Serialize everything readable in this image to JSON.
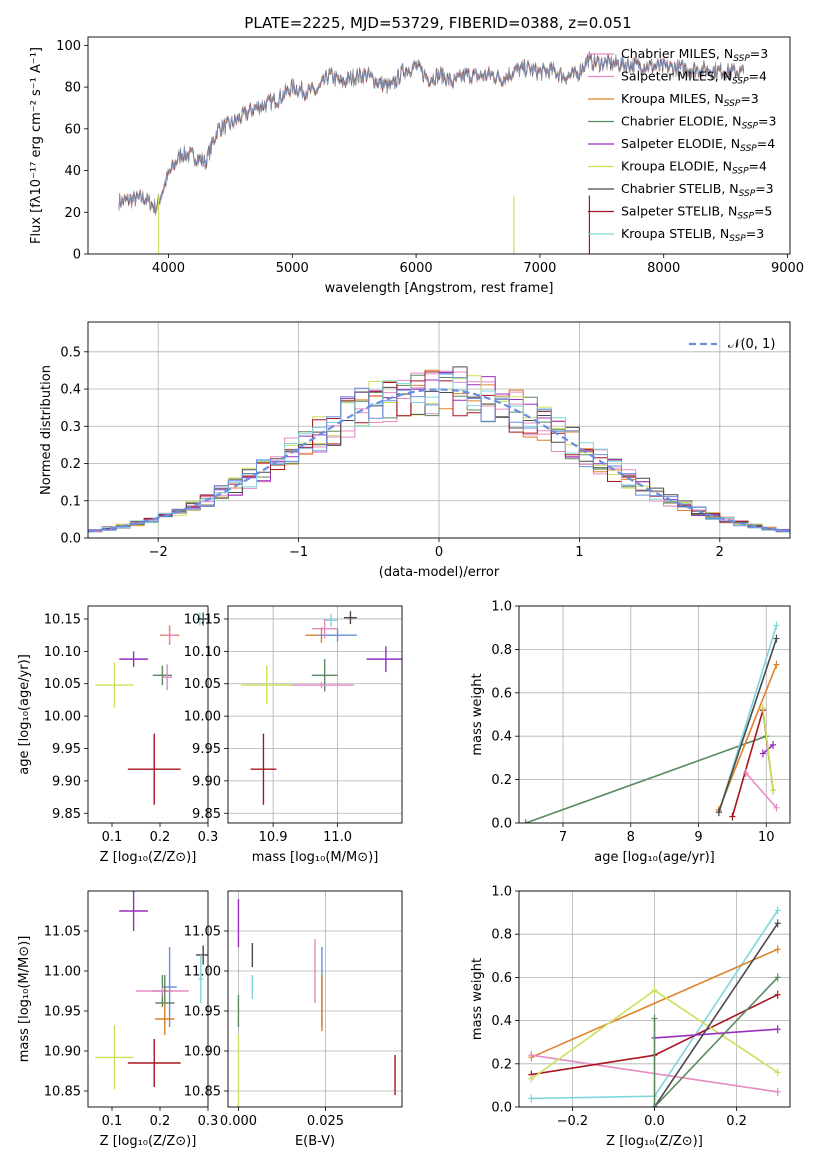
{
  "figure": {
    "title": "PLATE=2225, MJD=53729, FIBERID=0388, z=0.051"
  },
  "colors": {
    "pink": "#e58bc4",
    "orange": "#e0822a",
    "gray": "#6e6e6e",
    "purple": "#9a2fbf",
    "yellow": "#cde05a",
    "dark": "#4a4a4a",
    "red": "#a81621",
    "cyan": "#7fd6dc",
    "green": "#5a8a60",
    "blue": "#6a8fe0",
    "olive": "#9a9a3a",
    "grid": "#b0b0b0"
  },
  "legend_spectrum": [
    {
      "text": "Chabrier MILES, N",
      "sub": "SSP",
      "suffix": "=3",
      "color": "#e58bc4"
    },
    {
      "text": "Salpeter MILES, N",
      "sub": "SSP",
      "suffix": "=4",
      "color": "#e58bc4"
    },
    {
      "text": "Kroupa MILES, N",
      "sub": "SSP",
      "suffix": "=3",
      "color": "#e0822a"
    },
    {
      "text": "Chabrier ELODIE, N",
      "sub": "SSP",
      "suffix": "=3",
      "color": "#5a8a60"
    },
    {
      "text": "Salpeter ELODIE, N",
      "sub": "SSP",
      "suffix": "=4",
      "color": "#9a2fbf"
    },
    {
      "text": "Kroupa ELODIE, N",
      "sub": "SSP",
      "suffix": "=4",
      "color": "#cde05a"
    },
    {
      "text": "Chabrier STELIB, N",
      "sub": "SSP",
      "suffix": "=3",
      "color": "#4a4a4a"
    },
    {
      "text": "Salpeter STELIB, N",
      "sub": "SSP",
      "suffix": "=5",
      "color": "#a81621"
    },
    {
      "text": "Kroupa STELIB, N",
      "sub": "SSP",
      "suffix": "=3",
      "color": "#7fd6dc"
    }
  ],
  "chart_data": [
    {
      "id": "spectrum",
      "type": "line",
      "xlabel": "wavelength [Angstrom, rest frame]",
      "ylabel": "Flux [fλ10⁻¹⁷ erg cm⁻² s⁻¹ A⁻¹]",
      "xlim": [
        3350,
        9020
      ],
      "ylim": [
        0,
        104
      ],
      "xticks": [
        4000,
        5000,
        6000,
        7000,
        8000,
        9000
      ],
      "yticks": [
        0,
        20,
        40,
        60,
        80,
        100
      ],
      "x": [
        3600,
        3700,
        3800,
        3900,
        4000,
        4100,
        4200,
        4300,
        4400,
        4500,
        4600,
        4700,
        4800,
        4900,
        5000,
        5100,
        5200,
        5300,
        5400,
        5500,
        5600,
        5700,
        5800,
        5900,
        6000,
        6100,
        6200,
        6300,
        6400,
        6500,
        6600,
        6700,
        6800,
        6900,
        7000,
        7100,
        7200,
        7300,
        7400
      ],
      "y": [
        25,
        26,
        27,
        22,
        38,
        48,
        47,
        44,
        60,
        62,
        66,
        70,
        72,
        75,
        80,
        78,
        78,
        86,
        82,
        85,
        86,
        82,
        80,
        88,
        90,
        84,
        86,
        82,
        86,
        85,
        86,
        84,
        88,
        89,
        87,
        88,
        85,
        86,
        94
      ]
    },
    {
      "id": "residual-histogram",
      "type": "histogram",
      "xlabel": "(data-model)/error",
      "ylabel": "Normed distribution",
      "xlim": [
        -2.5,
        2.5
      ],
      "ylim": [
        0,
        0.58
      ],
      "xticks": [
        -2,
        -1,
        0,
        1,
        2
      ],
      "yticks": [
        0.0,
        0.1,
        0.2,
        0.3,
        0.4,
        0.5
      ],
      "legend": "N(0,1)",
      "reference": {
        "mean": 0,
        "sigma": 1
      },
      "bin_width": 0.1
    },
    {
      "id": "age-vs-metallicity",
      "type": "scatter",
      "xlabel": "Z [log₁₀(Z/Z⊙)]",
      "ylabel": "age [log₁₀(age/yr)]",
      "xlim": [
        0.05,
        0.3
      ],
      "ylim": [
        9.835,
        10.17
      ],
      "xticks": [
        0.1,
        0.2,
        0.3
      ],
      "yticks": [
        9.85,
        9.9,
        9.95,
        10.0,
        10.05,
        10.1,
        10.15
      ],
      "points": [
        {
          "x": 0.22,
          "y": 10.125,
          "xerr": 0.02,
          "yerr": 0.015,
          "color": "#e0822a"
        },
        {
          "x": 0.22,
          "y": 10.125,
          "xerr": 0.015,
          "yerr": 0.012,
          "color": "#e58bc4"
        },
        {
          "x": 0.283,
          "y": 10.15,
          "xerr": 0.008,
          "yerr": 0.01,
          "color": "#7fd6dc"
        },
        {
          "x": 0.29,
          "y": 10.15,
          "xerr": 0.01,
          "yerr": 0.01,
          "color": "#4a4a4a"
        },
        {
          "x": 0.145,
          "y": 10.088,
          "xerr": 0.03,
          "yerr": 0.012,
          "color": "#9a2fbf"
        },
        {
          "x": 0.205,
          "y": 10.063,
          "xerr": 0.02,
          "yerr": 0.015,
          "color": "#5a8a60"
        },
        {
          "x": 0.215,
          "y": 10.06,
          "xerr": 0.01,
          "yerr": 0.02,
          "color": "#e58bc4"
        },
        {
          "x": 0.105,
          "y": 10.048,
          "xerr": 0.04,
          "yerr": 0.035,
          "color": "#cde05a"
        },
        {
          "x": 0.188,
          "y": 9.918,
          "xerr": 0.055,
          "yerr": 0.055,
          "color": "#a81621"
        }
      ]
    },
    {
      "id": "age-vs-mass",
      "type": "scatter",
      "xlabel": "mass [log₁₀(M/M⊙)]",
      "xlim": [
        10.83,
        11.1
      ],
      "ylim": [
        9.835,
        10.17
      ],
      "xticks": [
        10.9,
        11.0
      ],
      "yticks": [
        9.85,
        9.9,
        9.95,
        10.0,
        10.05,
        10.1,
        10.15
      ],
      "points": [
        {
          "x": 11.02,
          "y": 10.152,
          "xerr": 0.01,
          "yerr": 0.01,
          "color": "#4a4a4a"
        },
        {
          "x": 10.99,
          "y": 10.148,
          "xerr": 0.01,
          "yerr": 0.01,
          "color": "#7fd6dc"
        },
        {
          "x": 10.975,
          "y": 10.125,
          "xerr": 0.025,
          "yerr": 0.012,
          "color": "#e0822a"
        },
        {
          "x": 11.0,
          "y": 10.125,
          "xerr": 0.03,
          "yerr": 0.01,
          "color": "#6a8fe0"
        },
        {
          "x": 10.98,
          "y": 10.135,
          "xerr": 0.02,
          "yerr": 0.015,
          "color": "#e58bc4"
        },
        {
          "x": 11.075,
          "y": 10.088,
          "xerr": 0.03,
          "yerr": 0.02,
          "color": "#9a2fbf"
        },
        {
          "x": 10.98,
          "y": 10.063,
          "xerr": 0.02,
          "yerr": 0.025,
          "color": "#5a8a60"
        },
        {
          "x": 10.975,
          "y": 10.048,
          "xerr": 0.05,
          "yerr": 0.005,
          "color": "#e58bc4"
        },
        {
          "x": 10.89,
          "y": 10.048,
          "xerr": 0.04,
          "yerr": 0.03,
          "color": "#cde05a"
        },
        {
          "x": 10.885,
          "y": 9.918,
          "xerr": 0.02,
          "yerr": 0.055,
          "color": "#a81621"
        }
      ]
    },
    {
      "id": "massweight-vs-age",
      "type": "line",
      "xlabel": "age  [log₁₀(age/yr)]",
      "ylabel": "mass weight",
      "xlim": [
        6.35,
        10.35
      ],
      "ylim": [
        0,
        1.0
      ],
      "xticks": [
        7,
        8,
        9,
        10
      ],
      "yticks": [
        0.0,
        0.2,
        0.4,
        0.6,
        0.8,
        1.0
      ],
      "series": [
        {
          "color": "#5a8a60",
          "x": [
            6.45,
            10.0
          ],
          "y": [
            0.0,
            0.4
          ]
        },
        {
          "color": "#7fd6dc",
          "x": [
            9.3,
            10.15
          ],
          "y": [
            0.05,
            0.91
          ]
        },
        {
          "color": "#e0822a",
          "x": [
            9.3,
            10.15
          ],
          "y": [
            0.06,
            0.73
          ]
        },
        {
          "color": "#4a4a4a",
          "x": [
            9.3,
            10.15
          ],
          "y": [
            0.05,
            0.85
          ]
        },
        {
          "color": "#a81621",
          "x": [
            9.5,
            9.95,
            10.1
          ],
          "y": [
            0.03,
            0.52,
            0.15
          ]
        },
        {
          "color": "#9a2fbf",
          "x": [
            9.95,
            10.1
          ],
          "y": [
            0.32,
            0.36
          ]
        },
        {
          "color": "#cde05a",
          "x": [
            9.95,
            10.1
          ],
          "y": [
            0.53,
            0.15
          ]
        },
        {
          "color": "#e58bc4",
          "x": [
            9.7,
            10.15
          ],
          "y": [
            0.23,
            0.07
          ]
        }
      ]
    },
    {
      "id": "mass-vs-metallicity",
      "type": "scatter",
      "xlabel": "Z [log₁₀(Z/Z⊙)]",
      "ylabel": "mass [log₁₀(M/M⊙)]",
      "xlim": [
        0.05,
        0.3
      ],
      "ylim": [
        10.83,
        11.1
      ],
      "xticks": [
        0.1,
        0.2,
        0.3
      ],
      "yticks": [
        10.85,
        10.9,
        10.95,
        11.0,
        11.05
      ],
      "points": [
        {
          "x": 0.145,
          "y": 11.075,
          "xerr": 0.03,
          "yerr": 0.025,
          "color": "#9a2fbf"
        },
        {
          "x": 0.29,
          "y": 11.02,
          "xerr": 0.015,
          "yerr": 0.012,
          "color": "#4a4a4a"
        },
        {
          "x": 0.285,
          "y": 10.99,
          "xerr": 0.005,
          "yerr": 0.03,
          "color": "#7fd6dc"
        },
        {
          "x": 0.22,
          "y": 10.98,
          "xerr": 0.015,
          "yerr": 0.05,
          "color": "#6a8fe0"
        },
        {
          "x": 0.205,
          "y": 10.975,
          "xerr": 0.02,
          "yerr": 0.02,
          "color": "#5a8a60"
        },
        {
          "x": 0.205,
          "y": 10.975,
          "xerr": 0.055,
          "yerr": 0.005,
          "color": "#e58bc4"
        },
        {
          "x": 0.21,
          "y": 10.96,
          "xerr": 0.02,
          "yerr": 0.035,
          "color": "#5a8a60"
        },
        {
          "x": 0.21,
          "y": 10.94,
          "xerr": 0.02,
          "yerr": 0.02,
          "color": "#e0822a"
        },
        {
          "x": 0.105,
          "y": 10.892,
          "xerr": 0.04,
          "yerr": 0.04,
          "color": "#cde05a"
        },
        {
          "x": 0.188,
          "y": 10.885,
          "xerr": 0.055,
          "yerr": 0.03,
          "color": "#a81621"
        }
      ]
    },
    {
      "id": "mass-vs-ebv",
      "type": "scatter",
      "xlabel": "E(B-V)",
      "xlim": [
        -0.003,
        0.047
      ],
      "ylim": [
        10.83,
        11.1
      ],
      "xticks": [
        0.0,
        0.025
      ],
      "yticks": [
        10.85,
        10.9,
        10.95,
        11.0,
        11.05
      ],
      "points": [
        {
          "x": 0.0,
          "y": 11.06,
          "yerr": 0.03,
          "color": "#9a2fbf"
        },
        {
          "x": 0.004,
          "y": 11.02,
          "yerr": 0.015,
          "color": "#4a4a4a"
        },
        {
          "x": 0.004,
          "y": 10.98,
          "yerr": 0.015,
          "color": "#7fd6dc"
        },
        {
          "x": 0.0,
          "y": 10.95,
          "yerr": 0.02,
          "color": "#5a8a60"
        },
        {
          "x": 0.022,
          "y": 11.0,
          "yerr": 0.04,
          "color": "#e58bc4"
        },
        {
          "x": 0.024,
          "y": 10.98,
          "yerr": 0.05,
          "color": "#6a8fe0"
        },
        {
          "x": 0.024,
          "y": 10.96,
          "yerr": 0.035,
          "color": "#e0822a"
        },
        {
          "x": 0.0,
          "y": 10.87,
          "yerr": 0.05,
          "color": "#cde05a"
        },
        {
          "x": 0.045,
          "y": 10.87,
          "yerr": 0.025,
          "color": "#a81621"
        }
      ]
    },
    {
      "id": "massweight-vs-metallicity",
      "type": "line",
      "xlabel": "Z [log₁₀(Z/Z⊙)]",
      "ylabel": "mass weight",
      "xlim": [
        -0.33,
        0.33
      ],
      "ylim": [
        0,
        1.0
      ],
      "xticks": [
        -0.2,
        0.0,
        0.2
      ],
      "yticks": [
        0.0,
        0.2,
        0.4,
        0.6,
        0.8,
        1.0
      ],
      "series": [
        {
          "color": "#7fd6dc",
          "x": [
            -0.3,
            0.0,
            0.3
          ],
          "y": [
            0.04,
            0.05,
            0.91
          ]
        },
        {
          "color": "#e0822a",
          "x": [
            -0.3,
            0.3
          ],
          "y": [
            0.23,
            0.73
          ]
        },
        {
          "color": "#e58bc4",
          "x": [
            -0.3,
            0.3
          ],
          "y": [
            0.24,
            0.07
          ]
        },
        {
          "color": "#a81621",
          "x": [
            -0.3,
            0.0,
            0.3
          ],
          "y": [
            0.15,
            0.24,
            0.52
          ]
        },
        {
          "color": "#cde05a",
          "x": [
            -0.3,
            0.0,
            0.3
          ],
          "y": [
            0.13,
            0.54,
            0.16
          ]
        },
        {
          "color": "#9a2fbf",
          "x": [
            0.0,
            0.3
          ],
          "y": [
            0.32,
            0.36
          ]
        },
        {
          "color": "#4a4a4a",
          "x": [
            0.0,
            0.3
          ],
          "y": [
            0.0,
            0.85
          ]
        },
        {
          "color": "#5a8a60",
          "x": [
            0.0,
            0.3
          ],
          "y": [
            0.0,
            0.6
          ]
        },
        {
          "color": "#5a8a60",
          "x": [
            0.0,
            0.0
          ],
          "y": [
            0.0,
            0.41
          ]
        }
      ]
    }
  ]
}
